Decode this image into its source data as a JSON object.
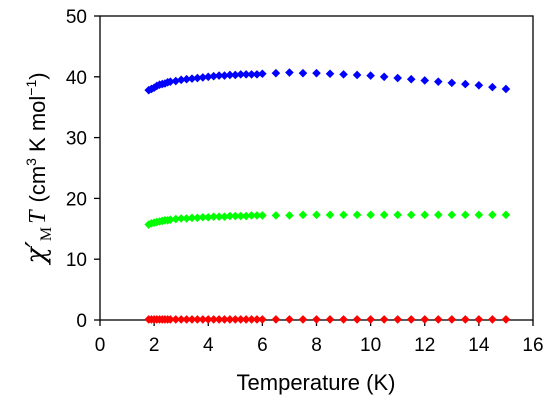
{
  "chart_data": {
    "type": "scatter",
    "title": "",
    "xlabel": "Temperature (K)",
    "ylabel": {
      "chi": "χ′",
      "sub": "M",
      "T": "T",
      "rest": "(cm",
      "sup3": "3",
      "rest2": " K mol",
      "supm1": "−1",
      "close": ")"
    },
    "xlim": [
      0,
      16
    ],
    "ylim": [
      0,
      50
    ],
    "xticks": [
      "0",
      "2",
      "4",
      "6",
      "8",
      "10",
      "12",
      "14",
      "16"
    ],
    "yticks": [
      "0",
      "10",
      "20",
      "30",
      "40",
      "50"
    ],
    "grid": false,
    "legend": "none",
    "marker": "diamond",
    "series": [
      {
        "color": "#0000ff",
        "x": [
          1.8,
          1.9,
          2.0,
          2.1,
          2.2,
          2.3,
          2.4,
          2.5,
          2.6,
          2.8,
          3.0,
          3.2,
          3.4,
          3.6,
          3.8,
          4.0,
          4.2,
          4.4,
          4.6,
          4.8,
          5.0,
          5.2,
          5.4,
          5.6,
          5.8,
          6.0,
          6.5,
          7.0,
          7.5,
          8.0,
          8.5,
          9.0,
          9.5,
          10.0,
          10.5,
          11.0,
          11.5,
          12.0,
          12.5,
          13.0,
          13.5,
          14.0,
          14.5,
          15.0
        ],
        "y": [
          37.8,
          38.0,
          38.2,
          38.5,
          38.7,
          38.8,
          38.9,
          39.1,
          39.2,
          39.3,
          39.5,
          39.6,
          39.7,
          39.8,
          39.9,
          40.0,
          40.1,
          40.2,
          40.2,
          40.3,
          40.3,
          40.4,
          40.4,
          40.4,
          40.4,
          40.5,
          40.6,
          40.7,
          40.6,
          40.6,
          40.5,
          40.4,
          40.3,
          40.2,
          40.0,
          39.8,
          39.6,
          39.4,
          39.2,
          39.0,
          38.8,
          38.6,
          38.3,
          38.0
        ]
      },
      {
        "color": "#00ff00",
        "x": [
          1.8,
          1.9,
          2.0,
          2.1,
          2.2,
          2.3,
          2.4,
          2.5,
          2.6,
          2.8,
          3.0,
          3.2,
          3.4,
          3.6,
          3.8,
          4.0,
          4.2,
          4.4,
          4.6,
          4.8,
          5.0,
          5.2,
          5.4,
          5.6,
          5.8,
          6.0,
          6.5,
          7.0,
          7.5,
          8.0,
          8.5,
          9.0,
          9.5,
          10.0,
          10.5,
          11.0,
          11.5,
          12.0,
          12.5,
          13.0,
          13.5,
          14.0,
          14.5,
          15.0
        ],
        "y": [
          15.7,
          15.9,
          16.0,
          16.1,
          16.2,
          16.3,
          16.4,
          16.4,
          16.5,
          16.6,
          16.7,
          16.7,
          16.8,
          16.8,
          16.9,
          16.9,
          17.0,
          17.0,
          17.0,
          17.1,
          17.1,
          17.1,
          17.1,
          17.2,
          17.2,
          17.2,
          17.2,
          17.2,
          17.3,
          17.3,
          17.3,
          17.3,
          17.3,
          17.3,
          17.3,
          17.3,
          17.3,
          17.3,
          17.3,
          17.3,
          17.3,
          17.3,
          17.3,
          17.3
        ]
      },
      {
        "color": "#ff0000",
        "x": [
          1.8,
          1.9,
          2.0,
          2.1,
          2.2,
          2.3,
          2.4,
          2.5,
          2.6,
          2.8,
          3.0,
          3.2,
          3.4,
          3.6,
          3.8,
          4.0,
          4.2,
          4.4,
          4.6,
          4.8,
          5.0,
          5.2,
          5.4,
          5.6,
          5.8,
          6.0,
          6.5,
          7.0,
          7.5,
          8.0,
          8.5,
          9.0,
          9.5,
          10.0,
          10.5,
          11.0,
          11.5,
          12.0,
          12.5,
          13.0,
          13.5,
          14.0,
          14.5,
          15.0
        ],
        "y": [
          0.1,
          0.1,
          0.1,
          0.1,
          0.1,
          0.1,
          0.1,
          0.1,
          0.1,
          0.1,
          0.1,
          0.1,
          0.1,
          0.1,
          0.1,
          0.1,
          0.1,
          0.1,
          0.1,
          0.1,
          0.1,
          0.1,
          0.1,
          0.1,
          0.1,
          0.1,
          0.1,
          0.1,
          0.1,
          0.1,
          0.1,
          0.1,
          0.1,
          0.1,
          0.1,
          0.1,
          0.1,
          0.1,
          0.1,
          0.1,
          0.1,
          0.1,
          0.1,
          0.1
        ]
      }
    ]
  }
}
